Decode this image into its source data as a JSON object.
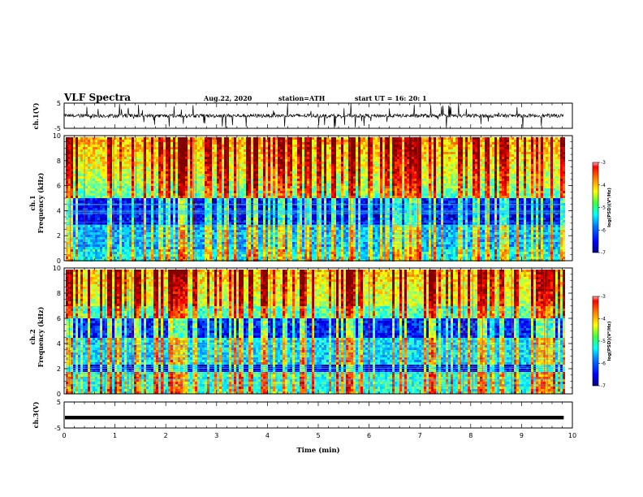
{
  "header": {
    "title": "VLF Spectra",
    "date": "Aug.22, 2020",
    "station": "station=ATH",
    "start": "start  UT =   16: 20: 1"
  },
  "colors": {
    "background": "#ffffff",
    "axis": "#000000",
    "colormap": [
      "#00007f",
      "#0000ff",
      "#0080ff",
      "#00ffff",
      "#80ff80",
      "#ffff00",
      "#ff8000",
      "#ff0000",
      "#7f0000"
    ]
  },
  "chart_data": [
    {
      "type": "line",
      "name": "ch1-waveform",
      "ylabel": "ch.1(V)",
      "ylim": [
        -5,
        5
      ],
      "yticks": [
        "5",
        "-5"
      ],
      "xlim": [
        0,
        10
      ],
      "x": [
        0,
        0.5,
        1,
        1.5,
        2,
        2.5,
        3,
        3.5,
        4,
        4.5,
        5,
        5.5,
        6,
        6.5,
        7,
        7.5,
        8,
        8.5,
        9,
        9.5,
        9.83
      ],
      "y": [
        0.2,
        -0.3,
        0.1,
        0.4,
        -0.2,
        0.3,
        0.0,
        0.5,
        -0.4,
        0.2,
        0.1,
        -0.3,
        0.4,
        0.0,
        0.2,
        -0.1,
        0.3,
        -0.2,
        0.1,
        0.5,
        0.0
      ]
    },
    {
      "type": "heatmap",
      "name": "ch1-spectrogram",
      "ylabel": "ch.1\nFrequency  (kHz)",
      "ylim": [
        0,
        10
      ],
      "yticks": [
        "0",
        "2",
        "4",
        "6",
        "8",
        "10"
      ],
      "xlim": [
        0,
        10
      ],
      "data_end_min": 9.83,
      "colorbar": {
        "range": [
          -7,
          -3
        ],
        "ticks": [
          "-3",
          "-4",
          "-5",
          "-6",
          "-7"
        ],
        "label": "log(PSD)(V²/Hz)"
      }
    },
    {
      "type": "heatmap",
      "name": "ch2-spectrogram",
      "ylabel": "ch.2\nFrequency  (kHz)",
      "ylim": [
        0,
        10
      ],
      "yticks": [
        "0",
        "2",
        "4",
        "6",
        "8",
        "10"
      ],
      "xlim": [
        0,
        10
      ],
      "data_end_min": 9.83,
      "colorbar": {
        "range": [
          -7,
          -3
        ],
        "ticks": [
          "-3",
          "-4",
          "-5",
          "-6",
          "-7"
        ],
        "label": "log(PSD)(V²/Hz)"
      }
    },
    {
      "type": "line",
      "name": "ch3-waveform",
      "ylabel": "ch.3(V)",
      "ylim": [
        -5,
        5
      ],
      "yticks": [
        "5",
        "-5"
      ],
      "xlim": [
        0,
        10
      ],
      "x": [
        0,
        9.83
      ],
      "y": [
        -1,
        -1
      ]
    }
  ],
  "xaxis": {
    "label": "Time  (min)",
    "ticks": [
      "0",
      "1",
      "2",
      "3",
      "4",
      "5",
      "6",
      "7",
      "8",
      "9",
      "10"
    ]
  }
}
